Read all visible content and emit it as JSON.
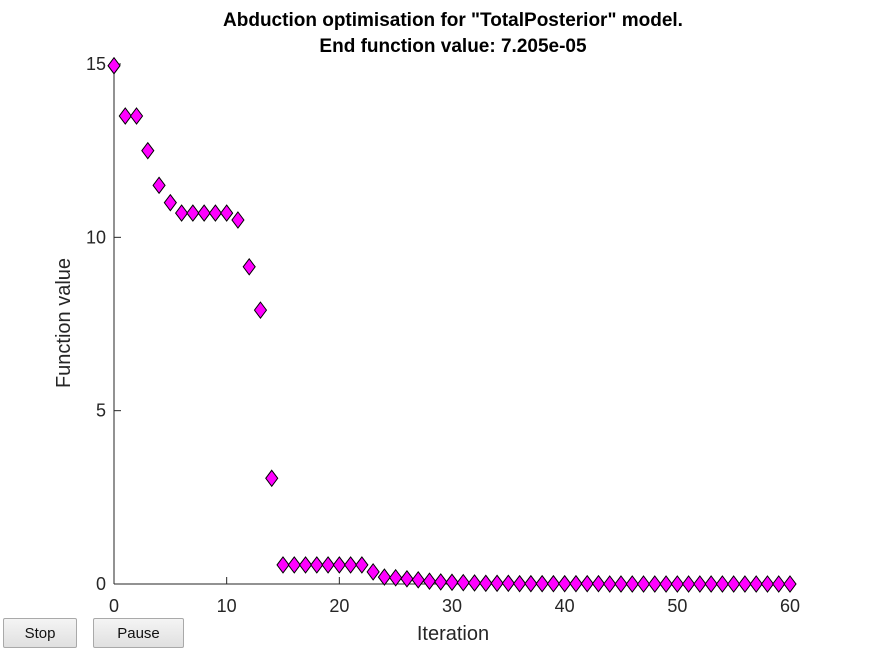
{
  "window": {
    "buttons": {
      "stop_label": "Stop",
      "pause_label": "Pause"
    }
  },
  "chart_data": {
    "type": "scatter",
    "title": "Abduction optimisation for \"TotalPosterior\" model.",
    "subtitle": "End function value: 7.205e-05",
    "xlabel": "Iteration",
    "ylabel": "Function value",
    "xlim": [
      0,
      60
    ],
    "ylim": [
      0,
      15
    ],
    "xticks": [
      0,
      10,
      20,
      30,
      40,
      50,
      60
    ],
    "yticks": [
      0,
      5,
      10,
      15
    ],
    "grid": false,
    "marker": "diamond",
    "marker_color": "#ff00ff",
    "marker_edge": "#000000",
    "x": [
      0,
      1,
      2,
      3,
      4,
      5,
      6,
      7,
      8,
      9,
      10,
      11,
      12,
      13,
      14,
      15,
      16,
      17,
      18,
      19,
      20,
      21,
      22,
      23,
      24,
      25,
      26,
      27,
      28,
      29,
      30,
      31,
      32,
      33,
      34,
      35,
      36,
      37,
      38,
      39,
      40,
      41,
      42,
      43,
      44,
      45,
      46,
      47,
      48,
      49,
      50,
      51,
      52,
      53,
      54,
      55,
      56,
      57,
      58,
      59,
      60
    ],
    "y": [
      14.95,
      13.5,
      13.5,
      12.5,
      11.5,
      11.0,
      10.7,
      10.7,
      10.7,
      10.7,
      10.7,
      10.5,
      9.15,
      7.9,
      3.05,
      0.55,
      0.55,
      0.55,
      0.55,
      0.55,
      0.55,
      0.55,
      0.55,
      0.35,
      0.2,
      0.18,
      0.15,
      0.12,
      0.08,
      0.06,
      0.05,
      0.04,
      0.03,
      0.02,
      0.02,
      0.02,
      0.01,
      0.01,
      0.01,
      0.01,
      0.01,
      0.01,
      0.01,
      0.01,
      0.0,
      0.0,
      0.0,
      0.0,
      0.0,
      0.0,
      0.0,
      0.0,
      0.0,
      0.0,
      0.0,
      0.0,
      0.0,
      0.0,
      0.0,
      0.0,
      0.0
    ]
  }
}
